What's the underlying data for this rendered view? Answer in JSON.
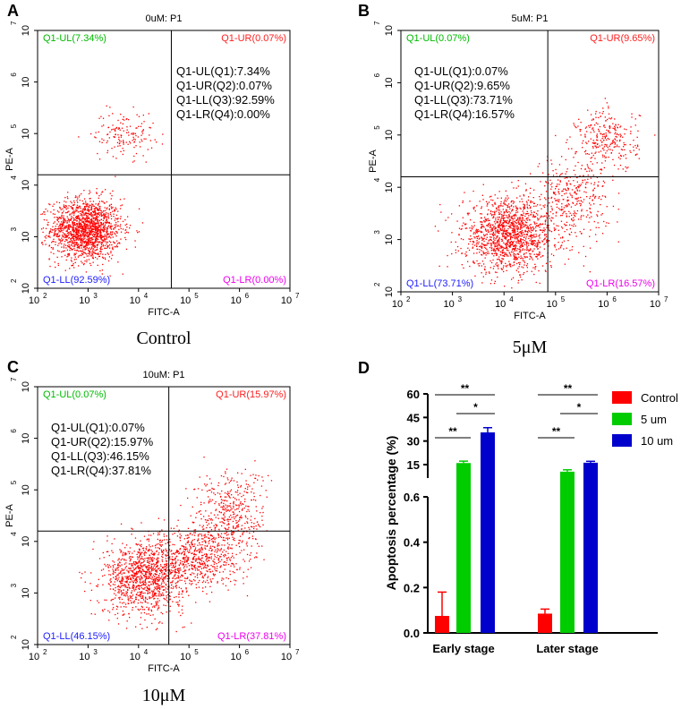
{
  "colors": {
    "red": "#ff0000",
    "green": "#00cc00",
    "blue": "#0000cc",
    "ul": "#00bb00",
    "ur": "#ff2020",
    "ll": "#2020ff",
    "lr": "#ee00ee",
    "dot": "#ff0000"
  },
  "chart_data": [
    {
      "type": "scatter",
      "panel_label": "A",
      "title": "0uM: P1",
      "xlabel": "FITC-A",
      "ylabel": "PE-A",
      "xlim_log10": [
        2,
        7
      ],
      "ylim_log10": [
        2,
        7
      ],
      "tick_labels": [
        "10",
        "10",
        "10",
        "10",
        "10",
        "10"
      ],
      "tick_exponents": [
        "2",
        "3",
        "4",
        "5",
        "6",
        "7"
      ],
      "quadrant_labels": {
        "ul": "Q1-UL(7.34%)",
        "ur": "Q1-UR(0.07%)",
        "ll": "Q1-LL(92.59%)",
        "lr": "Q1-LR(0.00%)"
      },
      "stats": [
        "Q1-UL(Q1):7.34%",
        "Q1-UR(Q2):0.07%",
        "Q1-LL(Q3):92.59%",
        "Q1-LR(Q4):0.00%"
      ],
      "caption": "Control",
      "gate_log10": {
        "x": 4.65,
        "y": 4.2
      },
      "clusters": [
        {
          "cx": 2.95,
          "cy": 3.15,
          "sx": 0.35,
          "sy": 0.3,
          "n": 1600
        },
        {
          "cx": 3.7,
          "cy": 5.0,
          "sx": 0.3,
          "sy": 0.22,
          "n": 150
        }
      ]
    },
    {
      "type": "scatter",
      "panel_label": "B",
      "title": "5uM: P1",
      "xlabel": "FITC-A",
      "ylabel": "PE-A",
      "xlim_log10": [
        2,
        7
      ],
      "ylim_log10": [
        2,
        7
      ],
      "tick_labels": [
        "10",
        "10",
        "10",
        "10",
        "10",
        "10"
      ],
      "tick_exponents": [
        "2",
        "3",
        "4",
        "5",
        "6",
        "7"
      ],
      "quadrant_labels": {
        "ul": "Q1-UL(0.07%)",
        "ur": "Q1-UR(9.65%)",
        "ll": "Q1-LL(73.71%)",
        "lr": "Q1-LR(16.57%)"
      },
      "stats": [
        "Q1-UL(Q1):0.07%",
        "Q1-UR(Q2):9.65%",
        "Q1-LL(Q3):73.71%",
        "Q1-LR(Q4):16.57%"
      ],
      "caption": "5μM",
      "gate_log10": {
        "x": 4.85,
        "y": 4.2
      },
      "clusters": [
        {
          "cx": 4.1,
          "cy": 3.1,
          "sx": 0.45,
          "sy": 0.35,
          "n": 1400
        },
        {
          "cx": 5.3,
          "cy": 3.8,
          "sx": 0.35,
          "sy": 0.4,
          "n": 350
        },
        {
          "cx": 6.0,
          "cy": 4.9,
          "sx": 0.3,
          "sy": 0.3,
          "n": 280
        }
      ]
    },
    {
      "type": "scatter",
      "panel_label": "C",
      "title": "10uM: P1",
      "xlabel": "FITC-A",
      "ylabel": "PE-A",
      "xlim_log10": [
        2,
        7
      ],
      "ylim_log10": [
        2,
        7
      ],
      "tick_labels": [
        "10",
        "10",
        "10",
        "10",
        "10",
        "10"
      ],
      "tick_exponents": [
        "2",
        "3",
        "4",
        "5",
        "6",
        "7"
      ],
      "quadrant_labels": {
        "ul": "Q1-UL(0.07%)",
        "ur": "Q1-UR(15.97%)",
        "ll": "Q1-LL(46.15%)",
        "lr": "Q1-LR(37.81%)"
      },
      "stats": [
        "Q1-UL(Q1):0.07%",
        "Q1-UR(Q2):15.97%",
        "Q1-LL(Q3):46.15%",
        "Q1-LR(Q4):37.81%"
      ],
      "caption": "10μM",
      "gate_log10": {
        "x": 4.6,
        "y": 4.2
      },
      "clusters": [
        {
          "cx": 4.1,
          "cy": 3.3,
          "sx": 0.4,
          "sy": 0.35,
          "n": 1100
        },
        {
          "cx": 5.1,
          "cy": 3.7,
          "sx": 0.45,
          "sy": 0.3,
          "n": 600
        },
        {
          "cx": 5.8,
          "cy": 4.5,
          "sx": 0.35,
          "sy": 0.45,
          "n": 450
        }
      ]
    },
    {
      "type": "bar",
      "panel_label": "D",
      "ylabel": "Apoptosis percentage (%)",
      "categories": [
        "Early stage",
        "Later stage"
      ],
      "series": [
        {
          "name": "Control",
          "values": [
            0.075,
            0.085
          ],
          "errors": [
            0.105,
            0.02
          ]
        },
        {
          "name": "5 um",
          "values": [
            16.0,
            10.5
          ],
          "errors": [
            1.2,
            1.2
          ]
        },
        {
          "name": "10 um",
          "values": [
            35.5,
            16.2
          ],
          "errors": [
            3.0,
            0.9
          ]
        }
      ],
      "y_axis_break": {
        "lower_range": [
          0,
          0.6
        ],
        "upper_range": [
          0.6,
          60
        ]
      },
      "lower_ticks": [
        "0.0",
        "0.2",
        "0.4",
        "0.6"
      ],
      "upper_ticks": [
        "15",
        "30",
        "45",
        "60"
      ],
      "upper_tick_values": [
        15,
        30,
        45,
        60
      ],
      "significance": [
        {
          "group": 0,
          "from": 0,
          "to": 1,
          "label": "**"
        },
        {
          "group": 0,
          "from": 1,
          "to": 2,
          "label": "*"
        },
        {
          "group": 0,
          "from": 0,
          "to": 2,
          "label": "**"
        },
        {
          "group": 1,
          "from": 0,
          "to": 1,
          "label": "**"
        },
        {
          "group": 1,
          "from": 1,
          "to": 2,
          "label": "*"
        },
        {
          "group": 1,
          "from": 0,
          "to": 2,
          "label": "**"
        }
      ]
    }
  ]
}
